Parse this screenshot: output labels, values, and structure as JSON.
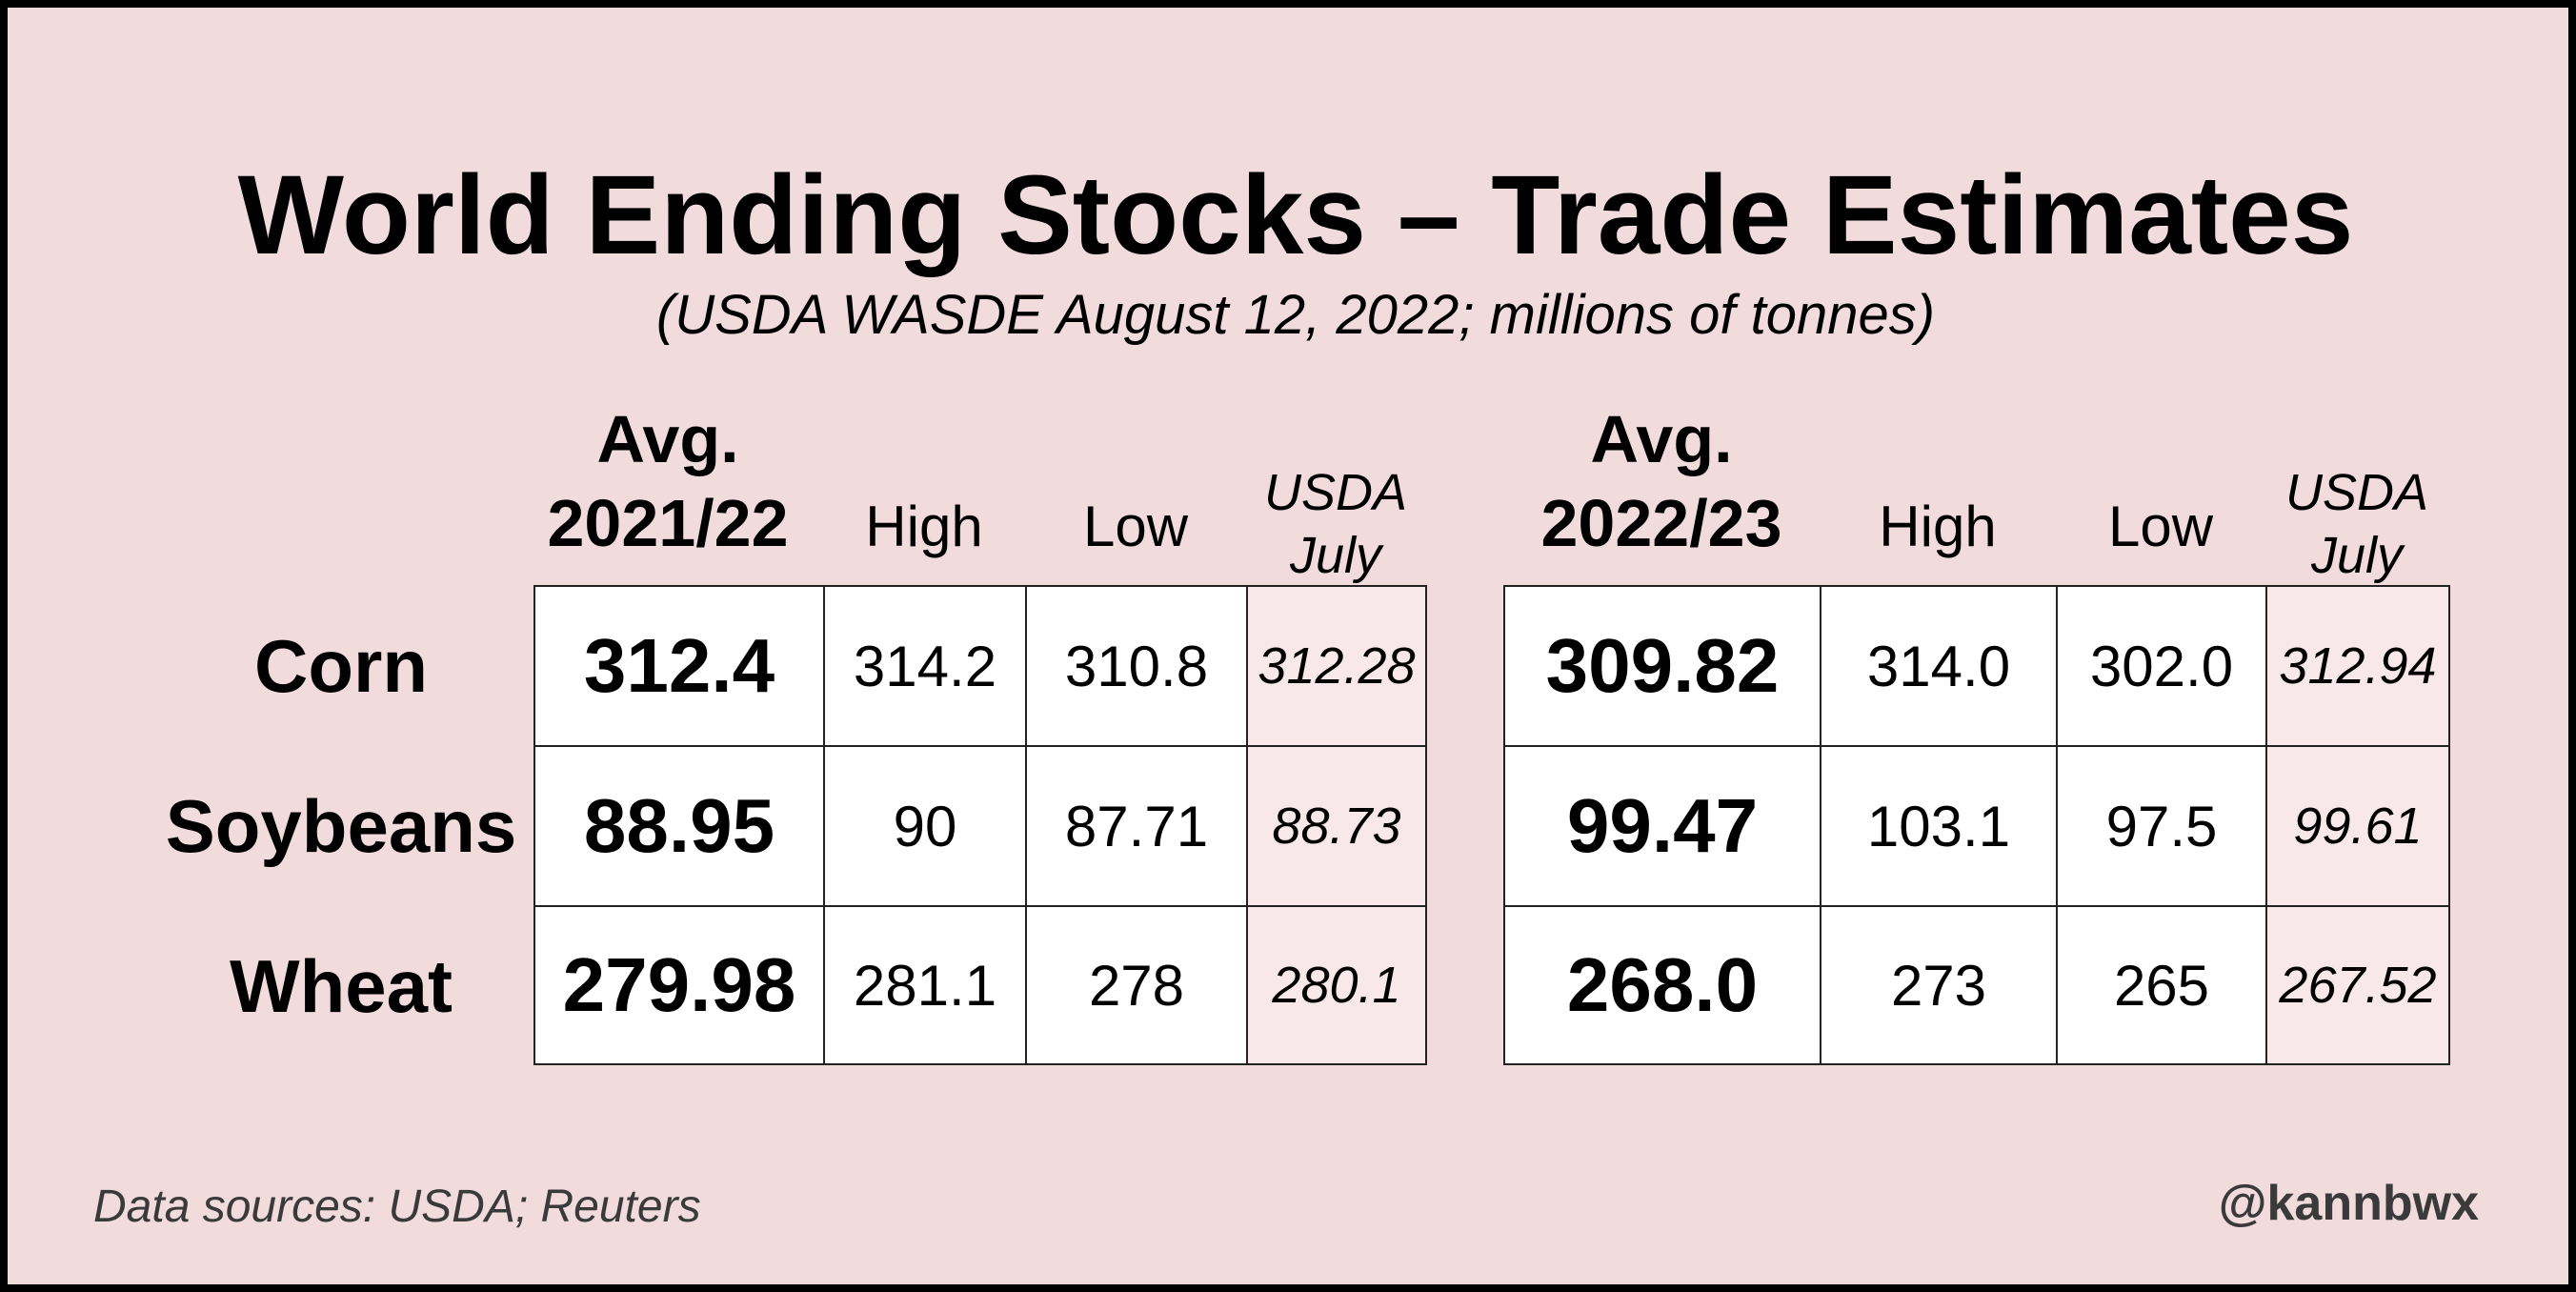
{
  "title": "World Ending Stocks – Trade Estimates",
  "subtitle": "(USDA WASDE August 12, 2022; millions of tonnes)",
  "chart_data": {
    "type": "table",
    "rows": [
      "Corn",
      "Soybeans",
      "Wheat"
    ],
    "tables": [
      {
        "headers": {
          "avg_line1": "Avg.",
          "avg_line2": "2021/22",
          "high": "High",
          "low": "Low",
          "usda_line1": "USDA",
          "usda_line2": "July"
        },
        "data": [
          {
            "commodity": "Corn",
            "avg": "312.4",
            "high": "314.2",
            "low": "310.8",
            "usda": "312.28"
          },
          {
            "commodity": "Soybeans",
            "avg": "88.95",
            "high": "90",
            "low": "87.71",
            "usda": "88.73"
          },
          {
            "commodity": "Wheat",
            "avg": "279.98",
            "high": "281.1",
            "low": "278",
            "usda": "280.1"
          }
        ]
      },
      {
        "headers": {
          "avg_line1": "Avg.",
          "avg_line2": "2022/23",
          "high": "High",
          "low": "Low",
          "usda_line1": "USDA",
          "usda_line2": "July"
        },
        "data": [
          {
            "commodity": "Corn",
            "avg": "309.82",
            "high": "314.0",
            "low": "302.0",
            "usda": "312.94"
          },
          {
            "commodity": "Soybeans",
            "avg": "99.47",
            "high": "103.1",
            "low": "97.5",
            "usda": "99.61"
          },
          {
            "commodity": "Wheat",
            "avg": "268.0",
            "high": "273",
            "low": "265",
            "usda": "267.52"
          }
        ]
      }
    ]
  },
  "footer": {
    "source": "Data sources: USDA; Reuters",
    "handle": "@kannbwx"
  },
  "colors": {
    "background": "#f1dbdd",
    "cell": "#ffffff",
    "usda_cell": "#f8e8e9"
  }
}
